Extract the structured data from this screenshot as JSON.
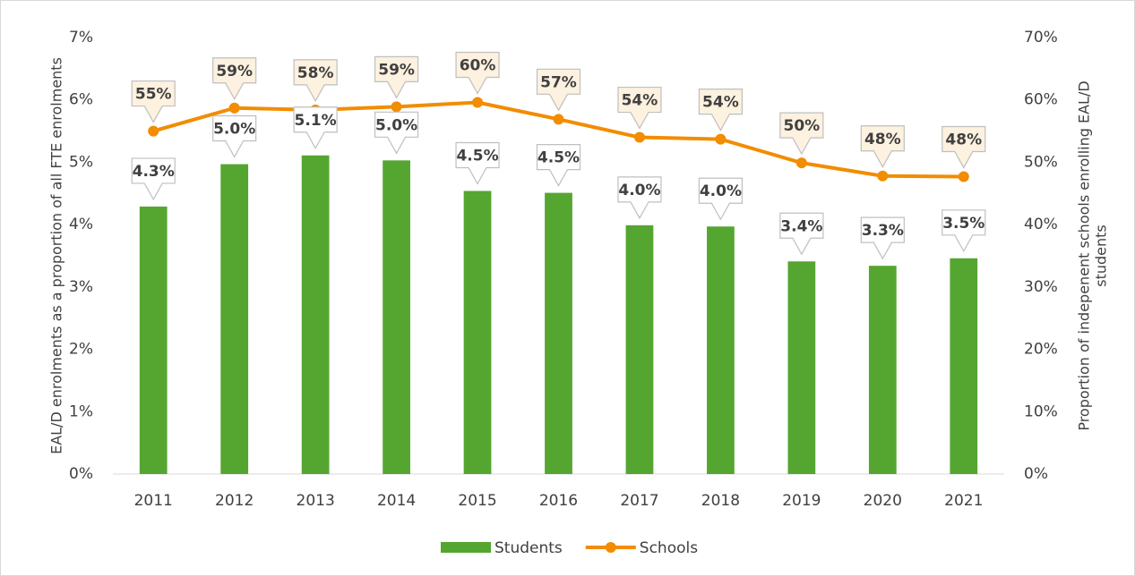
{
  "chart_data": {
    "type": "bar-line",
    "categories": [
      "2011",
      "2012",
      "2013",
      "2014",
      "2015",
      "2016",
      "2017",
      "2018",
      "2019",
      "2020",
      "2021"
    ],
    "series": [
      {
        "name": "Students",
        "type": "bar",
        "color": "#55a630",
        "axis": "y",
        "values": [
          4.29,
          4.97,
          5.11,
          5.03,
          4.54,
          4.51,
          3.99,
          3.97,
          3.41,
          3.34,
          3.46
        ],
        "value_labels": [
          "4.3%",
          "5.0%",
          "5.1%",
          "5.0%",
          "4.5%",
          "4.5%",
          "4.0%",
          "4.0%",
          "3.4%",
          "3.3%",
          "3.5%"
        ]
      },
      {
        "name": "Schools",
        "type": "line",
        "color": "#f28c00",
        "axis": "y2",
        "values": [
          55,
          58.7,
          58.4,
          58.9,
          59.6,
          56.9,
          54.0,
          53.7,
          49.9,
          47.8,
          47.7
        ],
        "value_labels": [
          "55%",
          "59%",
          "58%",
          "59%",
          "60%",
          "57%",
          "54%",
          "54%",
          "50%",
          "48%",
          "48%"
        ]
      }
    ],
    "ylabel": "EAL/D enrolments as a proportion of all FTE enrolments",
    "y2label": "Proportion of indepenent schools enrolling EAL/D students",
    "ylim": [
      0,
      7
    ],
    "yticks": [
      {
        "value": 0,
        "label": "0%"
      },
      {
        "value": 1,
        "label": "1%"
      },
      {
        "value": 2,
        "label": "2%"
      },
      {
        "value": 3,
        "label": "3%"
      },
      {
        "value": 4,
        "label": "4%"
      },
      {
        "value": 5,
        "label": "5%"
      },
      {
        "value": 6,
        "label": "6%"
      },
      {
        "value": 7,
        "label": "7%"
      }
    ],
    "y2lim": [
      0,
      70
    ],
    "y2ticks": [
      {
        "value": 0,
        "label": "0%"
      },
      {
        "value": 10,
        "label": "10%"
      },
      {
        "value": 20,
        "label": "20%"
      },
      {
        "value": 30,
        "label": "30%"
      },
      {
        "value": 40,
        "label": "40%"
      },
      {
        "value": 50,
        "label": "50%"
      },
      {
        "value": 60,
        "label": "60%"
      },
      {
        "value": 70,
        "label": "70%"
      }
    ],
    "legend": "bottom"
  }
}
